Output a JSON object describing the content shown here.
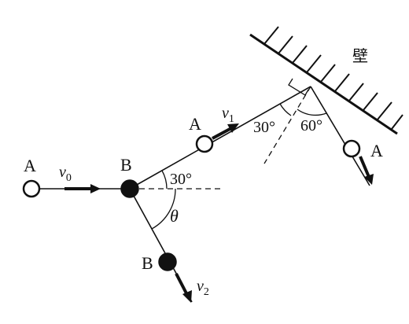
{
  "labels": {
    "A_left": "A",
    "A_middle": "A",
    "A_right": "A",
    "B_center": "B",
    "B_lower": "B",
    "v0": "v0",
    "v1": "v1",
    "v2": "v2",
    "angle_30_at_B": "30°",
    "angle_30_at_wall": "30°",
    "angle_60_at_wall": "60°",
    "theta": "θ",
    "wall": "壁"
  }
}
